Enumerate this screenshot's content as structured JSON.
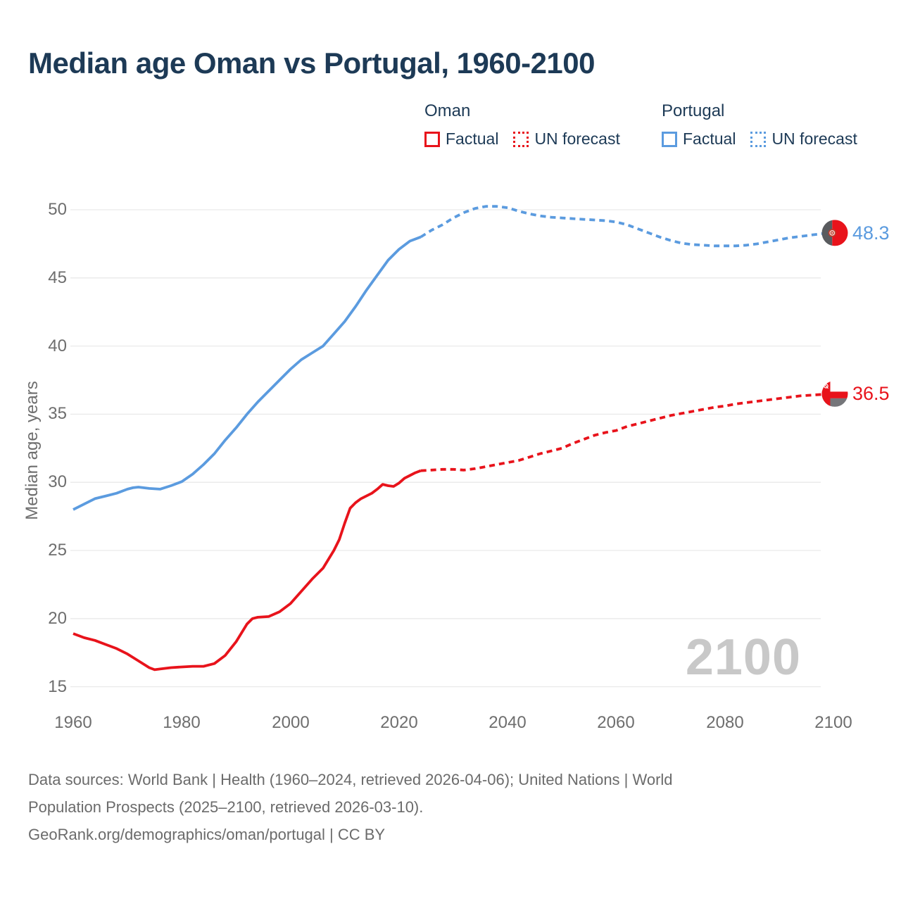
{
  "header": {
    "title": "Median age Oman vs Portugal, 1960-2100"
  },
  "legend": {
    "groups": [
      {
        "title": "Oman",
        "items": [
          {
            "label": "Factual",
            "style": "solid",
            "color": "#e8131b"
          },
          {
            "label": "UN forecast",
            "style": "dotted",
            "color": "#e8131b"
          }
        ]
      },
      {
        "title": "Portugal",
        "items": [
          {
            "label": "Factual",
            "style": "solid",
            "color": "#5b9bdf"
          },
          {
            "label": "UN forecast",
            "style": "dotted",
            "color": "#5b9bdf"
          }
        ]
      }
    ]
  },
  "footer": {
    "line1": "Data sources: World Bank | Health (1960–2024, retrieved 2026-04-06); United Nations | World",
    "line2": "Population Prospects (2025–2100, retrieved 2026-03-10).",
    "line3": "GeoRank.org/demographics/oman/portugal | CC BY"
  },
  "chart_data": {
    "type": "line",
    "title": "Median age Oman vs Portugal, 1960-2100",
    "xlabel": "",
    "ylabel": "Median age, years",
    "xlim": [
      1960,
      2100
    ],
    "ylim": [
      15,
      50
    ],
    "x_ticks": [
      1960,
      1980,
      2000,
      2020,
      2040,
      2060,
      2080,
      2100
    ],
    "y_ticks": [
      15,
      20,
      25,
      30,
      35,
      40,
      45,
      50
    ],
    "grid": "horizontal",
    "gridline_color": "#e9e9e9",
    "tick_color": "#6e6e6e",
    "watermark": "2100",
    "watermark_color": "#c8c8c8",
    "series": [
      {
        "name": "Portugal — Factual",
        "color": "#5b9bdf",
        "style": "solid",
        "points": [
          [
            1960,
            28.0
          ],
          [
            1962,
            28.4
          ],
          [
            1964,
            28.8
          ],
          [
            1966,
            29.0
          ],
          [
            1968,
            29.2
          ],
          [
            1970,
            29.5
          ],
          [
            1971,
            29.6
          ],
          [
            1972,
            29.65
          ],
          [
            1974,
            29.55
          ],
          [
            1976,
            29.5
          ],
          [
            1978,
            29.75
          ],
          [
            1980,
            30.05
          ],
          [
            1982,
            30.6
          ],
          [
            1984,
            31.3
          ],
          [
            1986,
            32.1
          ],
          [
            1988,
            33.1
          ],
          [
            1990,
            34.0
          ],
          [
            1992,
            35.0
          ],
          [
            1994,
            35.9
          ],
          [
            1996,
            36.7
          ],
          [
            1998,
            37.5
          ],
          [
            2000,
            38.3
          ],
          [
            2002,
            39.0
          ],
          [
            2004,
            39.5
          ],
          [
            2006,
            40.0
          ],
          [
            2008,
            40.9
          ],
          [
            2010,
            41.8
          ],
          [
            2012,
            42.9
          ],
          [
            2014,
            44.1
          ],
          [
            2016,
            45.2
          ],
          [
            2018,
            46.3
          ],
          [
            2020,
            47.1
          ],
          [
            2022,
            47.7
          ],
          [
            2024,
            48.0
          ]
        ]
      },
      {
        "name": "Portugal — UN forecast",
        "color": "#5b9bdf",
        "style": "dashed",
        "points": [
          [
            2024,
            48.0
          ],
          [
            2026,
            48.5
          ],
          [
            2028,
            48.9
          ],
          [
            2030,
            49.4
          ],
          [
            2032,
            49.8
          ],
          [
            2034,
            50.1
          ],
          [
            2036,
            50.25
          ],
          [
            2038,
            50.25
          ],
          [
            2040,
            50.15
          ],
          [
            2042,
            49.9
          ],
          [
            2044,
            49.7
          ],
          [
            2046,
            49.55
          ],
          [
            2048,
            49.45
          ],
          [
            2050,
            49.4
          ],
          [
            2052,
            49.35
          ],
          [
            2054,
            49.3
          ],
          [
            2056,
            49.25
          ],
          [
            2058,
            49.2
          ],
          [
            2060,
            49.1
          ],
          [
            2062,
            48.9
          ],
          [
            2064,
            48.6
          ],
          [
            2066,
            48.3
          ],
          [
            2068,
            48.0
          ],
          [
            2070,
            47.75
          ],
          [
            2072,
            47.55
          ],
          [
            2074,
            47.45
          ],
          [
            2076,
            47.4
          ],
          [
            2078,
            47.35
          ],
          [
            2080,
            47.35
          ],
          [
            2082,
            47.35
          ],
          [
            2084,
            47.4
          ],
          [
            2086,
            47.5
          ],
          [
            2088,
            47.65
          ],
          [
            2090,
            47.8
          ],
          [
            2092,
            47.95
          ],
          [
            2094,
            48.05
          ],
          [
            2096,
            48.15
          ],
          [
            2098,
            48.25
          ],
          [
            2100,
            48.3
          ]
        ]
      },
      {
        "name": "Oman — Factual",
        "color": "#e8131b",
        "style": "solid",
        "points": [
          [
            1960,
            18.9
          ],
          [
            1962,
            18.6
          ],
          [
            1964,
            18.4
          ],
          [
            1966,
            18.1
          ],
          [
            1968,
            17.8
          ],
          [
            1970,
            17.4
          ],
          [
            1972,
            16.9
          ],
          [
            1974,
            16.4
          ],
          [
            1975,
            16.25
          ],
          [
            1976,
            16.3
          ],
          [
            1978,
            16.4
          ],
          [
            1980,
            16.45
          ],
          [
            1982,
            16.5
          ],
          [
            1984,
            16.5
          ],
          [
            1986,
            16.7
          ],
          [
            1988,
            17.3
          ],
          [
            1990,
            18.3
          ],
          [
            1992,
            19.6
          ],
          [
            1993,
            20.0
          ],
          [
            1994,
            20.1
          ],
          [
            1996,
            20.15
          ],
          [
            1998,
            20.5
          ],
          [
            2000,
            21.1
          ],
          [
            2002,
            22.0
          ],
          [
            2004,
            22.9
          ],
          [
            2006,
            23.7
          ],
          [
            2008,
            25.0
          ],
          [
            2009,
            25.8
          ],
          [
            2010,
            27.0
          ],
          [
            2011,
            28.1
          ],
          [
            2012,
            28.5
          ],
          [
            2013,
            28.8
          ],
          [
            2014,
            29.0
          ],
          [
            2015,
            29.2
          ],
          [
            2016,
            29.5
          ],
          [
            2017,
            29.85
          ],
          [
            2018,
            29.75
          ],
          [
            2019,
            29.7
          ],
          [
            2020,
            29.95
          ],
          [
            2021,
            30.3
          ],
          [
            2022,
            30.5
          ],
          [
            2023,
            30.7
          ],
          [
            2024,
            30.85
          ]
        ]
      },
      {
        "name": "Oman — UN forecast",
        "color": "#e8131b",
        "style": "dashed",
        "points": [
          [
            2024,
            30.85
          ],
          [
            2026,
            30.9
          ],
          [
            2028,
            30.95
          ],
          [
            2030,
            30.95
          ],
          [
            2032,
            30.9
          ],
          [
            2034,
            31.0
          ],
          [
            2036,
            31.15
          ],
          [
            2038,
            31.3
          ],
          [
            2040,
            31.45
          ],
          [
            2042,
            31.6
          ],
          [
            2044,
            31.85
          ],
          [
            2046,
            32.1
          ],
          [
            2048,
            32.3
          ],
          [
            2050,
            32.5
          ],
          [
            2052,
            32.85
          ],
          [
            2054,
            33.15
          ],
          [
            2056,
            33.45
          ],
          [
            2058,
            33.65
          ],
          [
            2060,
            33.8
          ],
          [
            2062,
            34.1
          ],
          [
            2064,
            34.3
          ],
          [
            2066,
            34.5
          ],
          [
            2068,
            34.7
          ],
          [
            2070,
            34.9
          ],
          [
            2072,
            35.05
          ],
          [
            2074,
            35.2
          ],
          [
            2076,
            35.35
          ],
          [
            2078,
            35.5
          ],
          [
            2080,
            35.6
          ],
          [
            2082,
            35.75
          ],
          [
            2084,
            35.85
          ],
          [
            2086,
            35.95
          ],
          [
            2088,
            36.05
          ],
          [
            2090,
            36.15
          ],
          [
            2092,
            36.25
          ],
          [
            2094,
            36.35
          ],
          [
            2096,
            36.4
          ],
          [
            2098,
            36.45
          ],
          [
            2100,
            36.5
          ]
        ]
      }
    ],
    "end_labels": [
      {
        "text": "48.3",
        "value": 48.3,
        "color": "#5b9bdf",
        "flag": "portugal"
      },
      {
        "text": "36.5",
        "value": 36.5,
        "color": "#e8131b",
        "flag": "oman"
      }
    ],
    "flag_colors": {
      "red": "#e8131b",
      "white": "#ffffff",
      "oman_green_muted": "#75767a",
      "portugal_green_muted": "#595b5e",
      "portugal_emblem": "#c0392b",
      "portugal_emblem_ring": "#f2d8cf"
    },
    "legend_position": "top-right"
  }
}
